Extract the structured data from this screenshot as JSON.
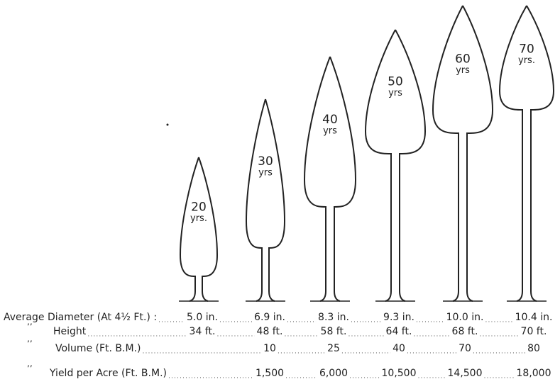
{
  "trees": [
    {
      "age": "20",
      "unit": "yrs."
    },
    {
      "age": "30",
      "unit": "yrs"
    },
    {
      "age": "40",
      "unit": "yrs"
    },
    {
      "age": "50",
      "unit": "yrs"
    },
    {
      "age": "60",
      "unit": "yrs"
    },
    {
      "age": "70",
      "unit": "yrs."
    }
  ],
  "table": {
    "rows": [
      {
        "label": "Average Diameter (At 4½ Ft.) :",
        "values": [
          "5.0 in.",
          "6.9 in.",
          "8.3 in.",
          "9.3 in.",
          "10.0 in.",
          "10.4 in."
        ]
      },
      {
        "label": "Height",
        "values": [
          "34 ft.",
          "48 ft.",
          "58 ft.",
          "64 ft.",
          "68 ft.",
          "70 ft."
        ]
      },
      {
        "label": "Volume (Ft. B.M.)",
        "values": [
          "10",
          "25",
          "40",
          "70",
          "80"
        ]
      },
      {
        "label": "Yield per Acre (Ft. B.M.)",
        "values": [
          "1,500",
          "6,000",
          "10,500",
          "14,500",
          "18,000"
        ]
      }
    ]
  }
}
